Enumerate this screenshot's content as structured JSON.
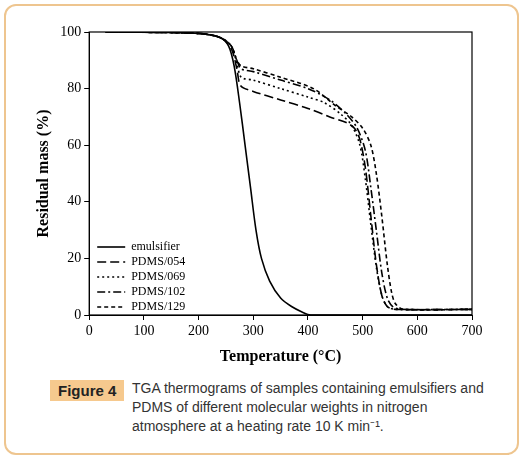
{
  "chart_data": {
    "type": "line",
    "x_label": "Temperature (°C)",
    "y_label": "Residual mass (%)",
    "xlim": [
      0,
      700
    ],
    "xticks": [
      0,
      100,
      200,
      300,
      400,
      500,
      600,
      700
    ],
    "ylim": [
      0,
      100
    ],
    "yticks": [
      0,
      20,
      40,
      60,
      80,
      100
    ],
    "grid": false,
    "legend": "lower left",
    "series": [
      {
        "name": "emulsifier",
        "color": "#000000",
        "line_style": "solid",
        "x": [
          30,
          150,
          200,
          240,
          255,
          265,
          275,
          285,
          295,
          305,
          315,
          330,
          350,
          370,
          390,
          405,
          500,
          700
        ],
        "values": [
          100,
          99.8,
          99.5,
          98,
          95,
          88,
          75,
          60,
          45,
          30,
          20,
          12,
          6,
          3,
          1,
          0,
          0,
          0
        ]
      },
      {
        "name": "PDMS/054",
        "color": "#000000",
        "line_style": "dashed",
        "x": [
          30,
          200,
          240,
          260,
          270,
          277,
          300,
          350,
          400,
          440,
          470,
          485,
          495,
          505,
          515,
          525,
          535,
          545,
          560,
          700
        ],
        "values": [
          100,
          99.5,
          98,
          94,
          87,
          81,
          79,
          76,
          73,
          70,
          68,
          66,
          62,
          52,
          35,
          18,
          7,
          3,
          2,
          2
        ]
      },
      {
        "name": "PDMS/069",
        "color": "#000000",
        "line_style": "dotted",
        "x": [
          30,
          200,
          240,
          260,
          270,
          278,
          300,
          350,
          400,
          430,
          460,
          480,
          495,
          505,
          515,
          525,
          535,
          545,
          560,
          700
        ],
        "values": [
          100,
          99.5,
          98,
          95,
          89,
          84,
          83,
          80,
          77,
          75,
          71,
          67,
          60,
          48,
          32,
          17,
          7,
          3,
          2,
          2
        ]
      },
      {
        "name": "PDMS/102",
        "color": "#000000",
        "line_style": "dashdot",
        "x": [
          30,
          200,
          240,
          260,
          270,
          278,
          300,
          350,
          400,
          440,
          470,
          490,
          505,
          515,
          525,
          535,
          545,
          555,
          570,
          700
        ],
        "values": [
          100,
          99.5,
          98,
          95,
          90,
          87,
          86,
          83,
          80,
          76,
          71,
          66,
          58,
          45,
          30,
          15,
          6,
          3,
          2,
          2
        ]
      },
      {
        "name": "PDMS/129",
        "color": "#000000",
        "line_style": "short_dash",
        "x": [
          30,
          200,
          240,
          260,
          270,
          278,
          300,
          350,
          410,
          450,
          480,
          500,
          515,
          525,
          535,
          545,
          553,
          560,
          575,
          700
        ],
        "values": [
          100,
          99.5,
          98,
          95,
          90,
          88,
          87,
          84,
          80,
          74,
          70,
          66,
          60,
          50,
          35,
          18,
          8,
          4,
          2,
          2
        ]
      }
    ]
  },
  "figure_label": "Figure 4",
  "caption": "TGA thermograms of samples containing emulsifiers and PDMS of different molecular weights in nitrogen atmosphere at a heating rate 10 K min⁻¹."
}
